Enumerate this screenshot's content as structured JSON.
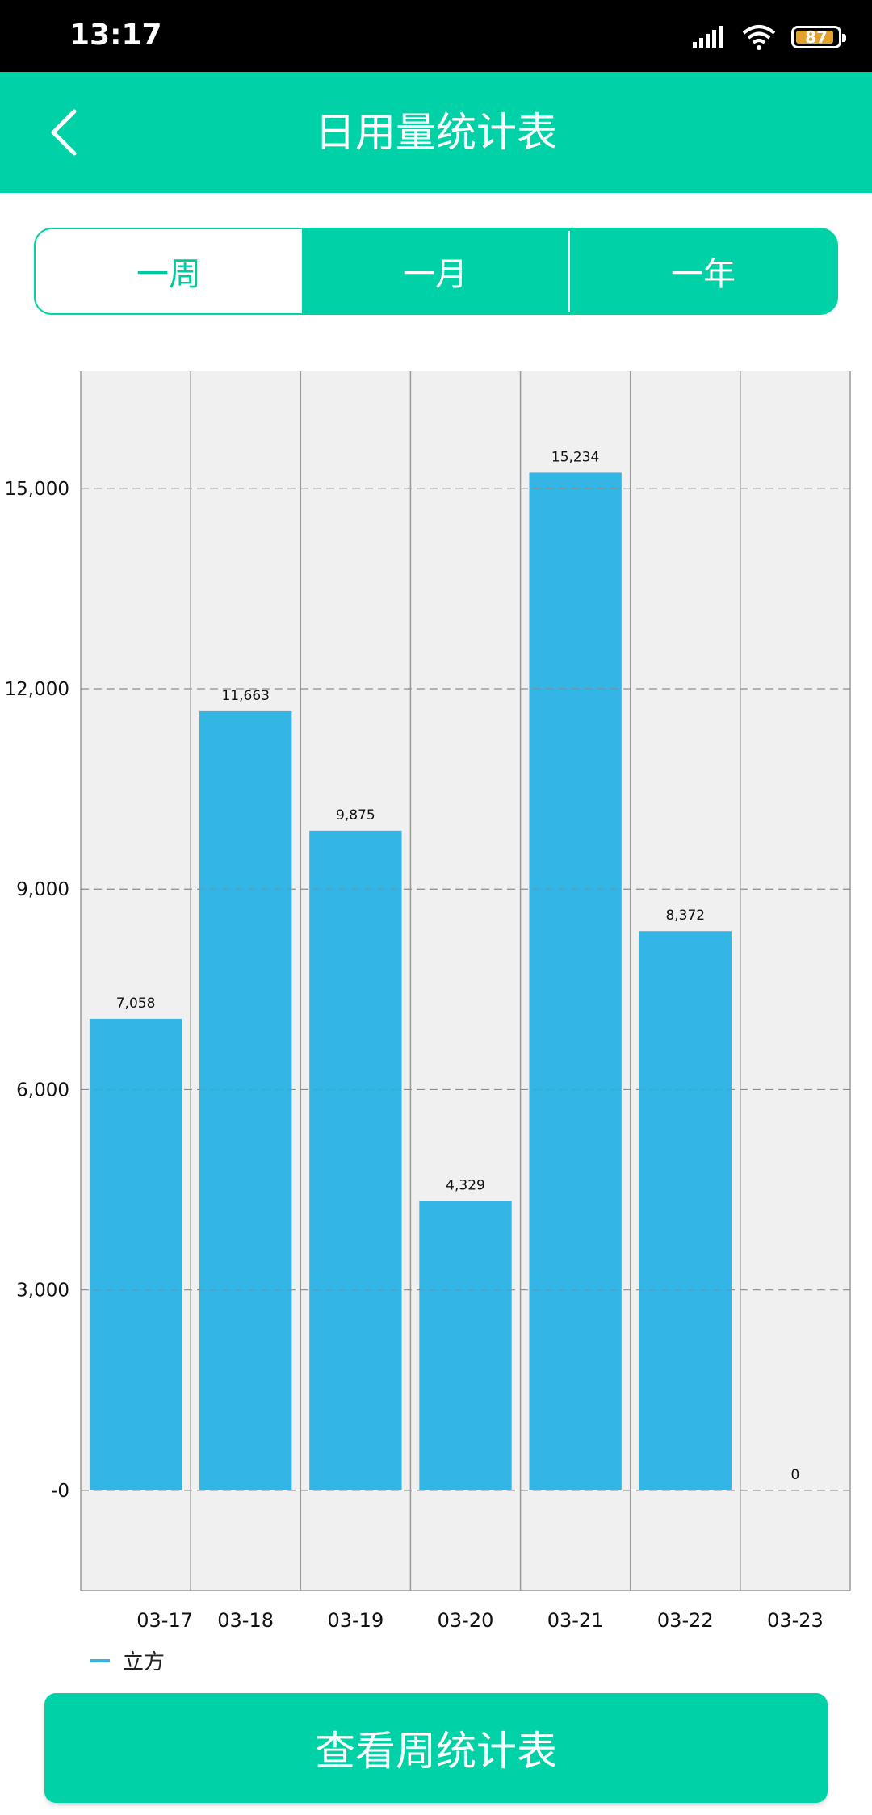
{
  "status_bar": {
    "time": "13:17",
    "battery": "87"
  },
  "header": {
    "title": "日用量统计表",
    "back_icon": "chevron-left-icon"
  },
  "tabs": [
    {
      "label": "一周",
      "active": true
    },
    {
      "label": "一月",
      "active": false
    },
    {
      "label": "一年",
      "active": false
    }
  ],
  "chart_data": {
    "type": "bar",
    "categories": [
      "03-17",
      "03-18",
      "03-19",
      "03-20",
      "03-21",
      "03-22",
      "03-23"
    ],
    "series": [
      {
        "name": "立方",
        "values": [
          7058,
          11663,
          9875,
          4329,
          15234,
          8372,
          0
        ]
      }
    ],
    "value_labels": [
      "7,058",
      "11,663",
      "9,875",
      "4,329",
      "15,234",
      "8,372",
      "0"
    ],
    "y_ticks": [
      0,
      3000,
      6000,
      9000,
      12000,
      15000
    ],
    "y_tick_labels": [
      "-0",
      "3,000",
      "6,000",
      "9,000",
      "12,000",
      "15,000"
    ],
    "ylim": [
      -1500,
      16750
    ],
    "grid": true,
    "legend_position": "bottom-left",
    "bar_color": "#33b5e5",
    "background_color": "#f0f0f0"
  },
  "legend": {
    "label": "立方"
  },
  "bottom_button": {
    "label": "查看周统计表"
  },
  "colors": {
    "accent": "#00d1a6"
  }
}
